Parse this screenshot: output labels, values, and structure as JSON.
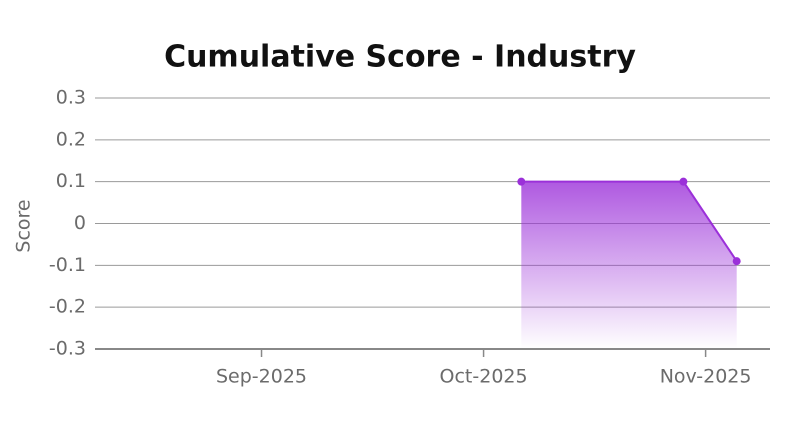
{
  "chart_data": {
    "type": "area",
    "title": "Cumulative Score - Industry",
    "y_label": "Score",
    "x": [
      10.17,
      10.9,
      11.14
    ],
    "series": [
      {
        "name": "Score",
        "color": "#9b30d9",
        "values": [
          0.1,
          0.1,
          -0.09
        ]
      }
    ],
    "xlim": [
      8.25,
      11.29
    ],
    "xticks": [
      {
        "value": 9,
        "label": "Sep-2025"
      },
      {
        "value": 10,
        "label": "Oct-2025"
      },
      {
        "value": 11,
        "label": "Nov-2025"
      }
    ],
    "ylim": [
      -0.3,
      0.3
    ],
    "yticks": [
      0.3,
      0.2,
      0.1,
      0,
      -0.1,
      -0.2,
      -0.3
    ],
    "grid": true
  }
}
